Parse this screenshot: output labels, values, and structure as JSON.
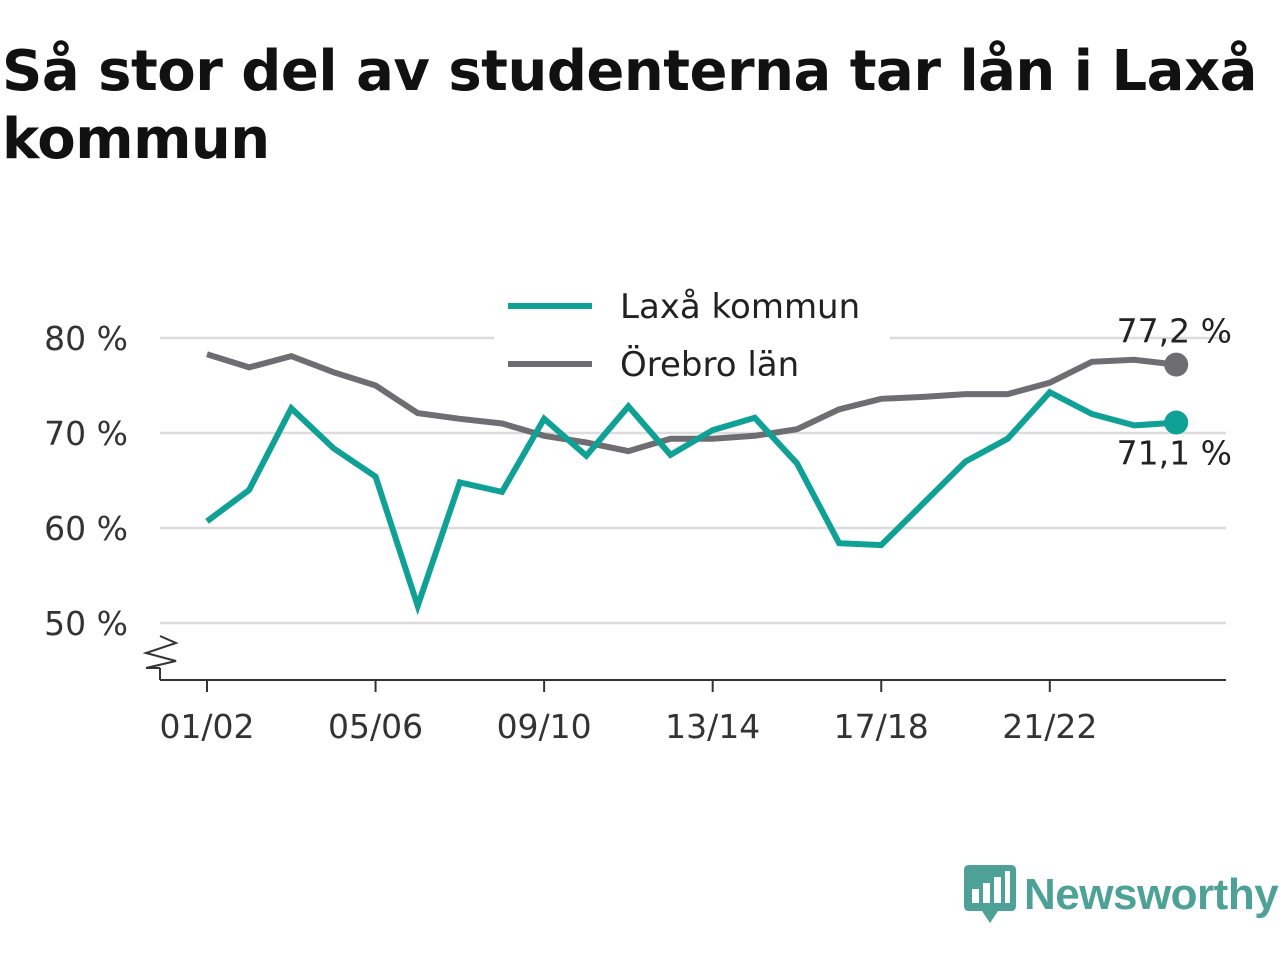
{
  "title": "Så stor del av studenterna tar lån i Laxå kommun",
  "brand": {
    "name": "Newsworthy",
    "color": "#4ea197"
  },
  "chart_data": {
    "type": "line",
    "x": [
      "01/02",
      "02/03",
      "03/04",
      "04/05",
      "05/06",
      "06/07",
      "07/08",
      "08/09",
      "09/10",
      "10/11",
      "11/12",
      "12/13",
      "13/14",
      "14/15",
      "15/16",
      "16/17",
      "17/18",
      "18/19",
      "19/20",
      "20/21",
      "21/22",
      "22/23",
      "23/24",
      "24/25"
    ],
    "x_tick_labels": [
      "01/02",
      "05/06",
      "09/10",
      "13/14",
      "17/18",
      "21/22"
    ],
    "y_tick_labels": [
      "50 %",
      "60 %",
      "70 %",
      "80 %"
    ],
    "y_ticks": [
      50,
      60,
      70,
      80
    ],
    "ylim": [
      44,
      84
    ],
    "y_axis_broken": true,
    "grid": true,
    "legend_position": "top-center",
    "series": [
      {
        "name": "Laxå kommun",
        "color": "#0fa195",
        "values": [
          60.7,
          64.0,
          72.6,
          68.4,
          65.4,
          51.8,
          64.8,
          63.8,
          71.5,
          67.6,
          72.8,
          67.7,
          70.3,
          71.6,
          66.8,
          58.4,
          58.2,
          62.6,
          67.0,
          69.4,
          74.3,
          72.0,
          70.8,
          71.1
        ],
        "end_label": "71,1 %"
      },
      {
        "name": "Örebro län",
        "color": "#6e6d72",
        "values": [
          78.3,
          76.9,
          78.1,
          76.4,
          75.0,
          72.1,
          71.5,
          71.0,
          69.7,
          69.0,
          68.1,
          69.4,
          69.4,
          69.7,
          70.4,
          72.5,
          73.6,
          73.8,
          74.1,
          74.1,
          75.3,
          77.5,
          77.7,
          77.2
        ],
        "end_label": "77,2 %"
      }
    ]
  }
}
